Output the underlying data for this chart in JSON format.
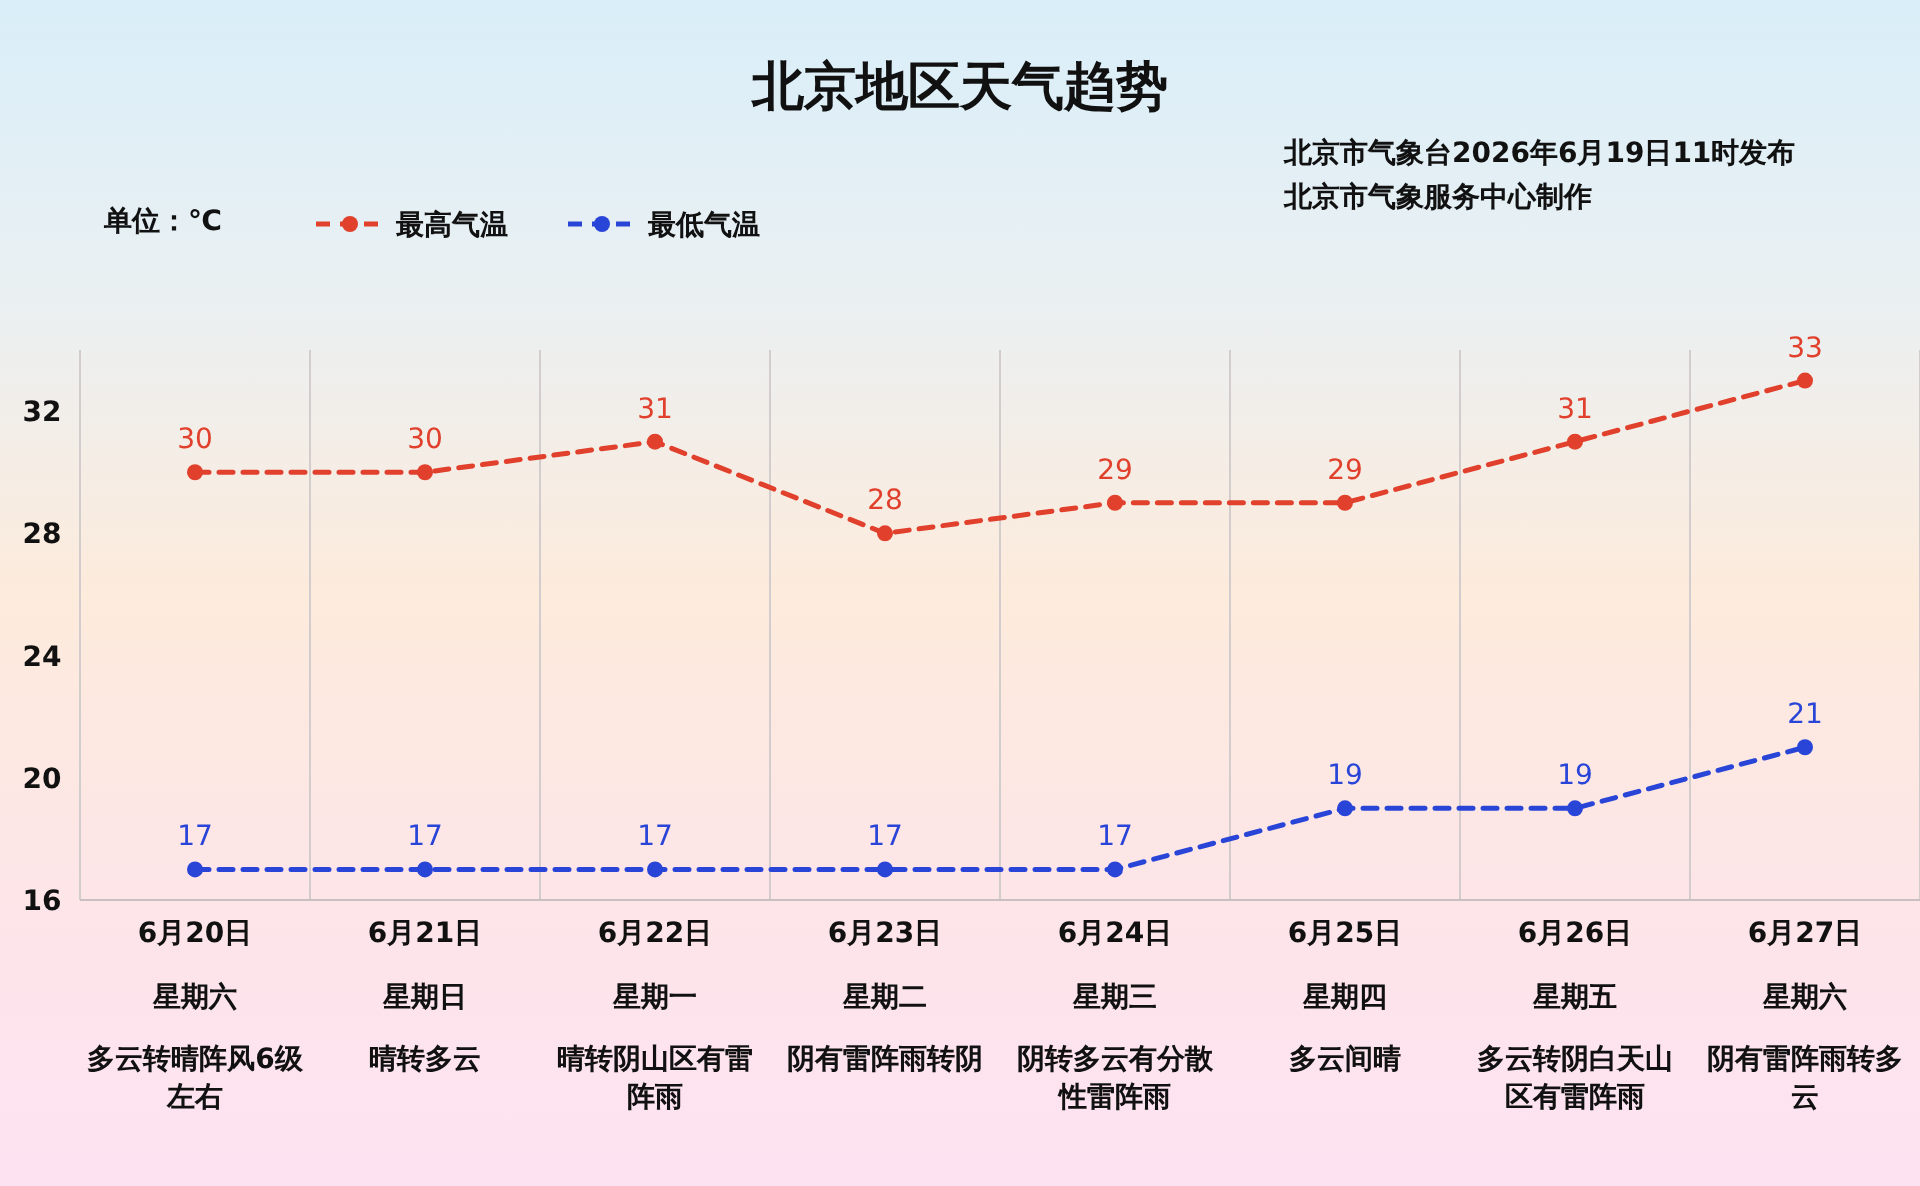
{
  "chart_data": {
    "type": "line",
    "title": "北京地区天气趋势",
    "ylabel": "单位：℃",
    "annotations": [
      "北京市气象台2026年6月19日11时发布",
      "北京市气象服务中心制作"
    ],
    "categories": [
      "6月20日星期六多云转晴阵风6级左右",
      "6月21日星期日晴转多云",
      "6月22日星期一晴转阴山区有雷阵雨",
      "6月23日星期二阴有雷阵雨转阴",
      "6月24日星期三阴转多云有分散性雷阵雨",
      "6月25日星期四多云间晴",
      "6月26日星期五多云转阴白天山区有雷阵雨",
      "6月27日星期六阴有雷阵雨转多云"
    ],
    "series": [
      {
        "name": "最高气温",
        "color": "#e0402c",
        "values": [
          30,
          30,
          31,
          28,
          29,
          29,
          31,
          33
        ]
      },
      {
        "name": "最低气温",
        "color": "#2845d8",
        "values": [
          17,
          17,
          17,
          17,
          17,
          19,
          19,
          21
        ]
      }
    ],
    "ylim": [
      16,
      34
    ],
    "yticks": [
      16,
      20,
      24,
      28,
      32
    ],
    "grid": "x",
    "legend": "top left",
    "marker": "circle",
    "line_style": "dashed",
    "data_labels": true
  }
}
